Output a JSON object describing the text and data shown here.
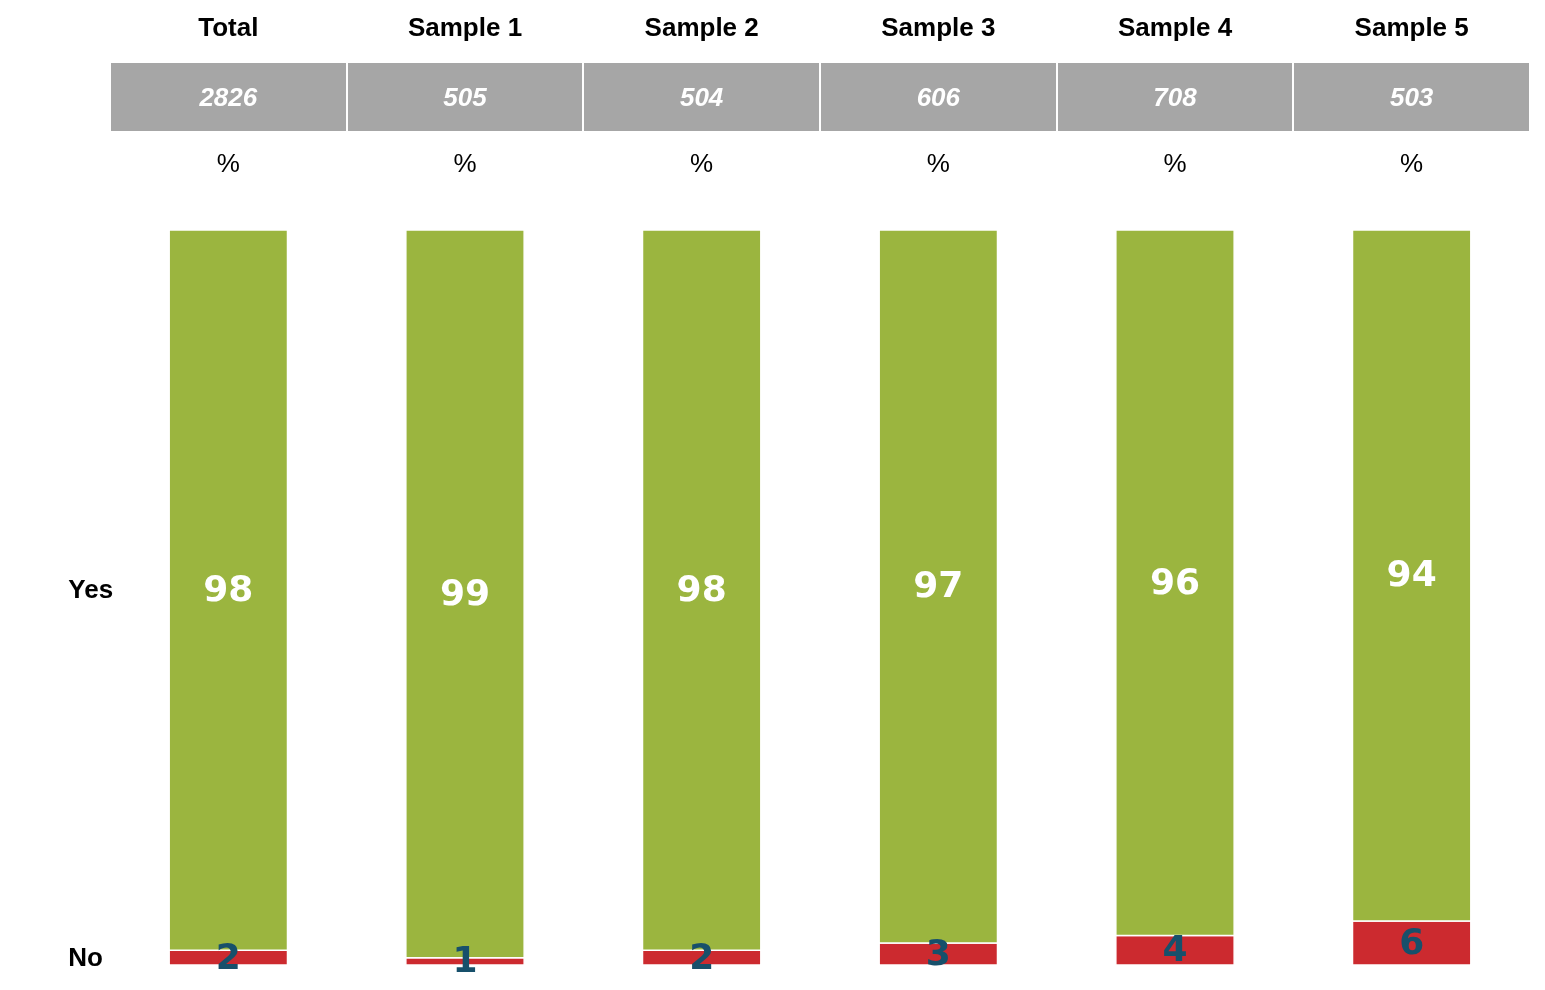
{
  "chart_data": {
    "type": "bar",
    "stacked": true,
    "data_labels": true,
    "categories": [
      "Total",
      "Sample 1",
      "Sample 2",
      "Sample 3",
      "Sample 4",
      "Sample 5"
    ],
    "series": [
      {
        "name": "No",
        "color": "#cc2a2f",
        "values": [
          2,
          1,
          2,
          3,
          4,
          6
        ]
      },
      {
        "name": "Yes",
        "color": "#9bb53f",
        "values": [
          98,
          99,
          98,
          97,
          96,
          94
        ]
      }
    ],
    "annotations": [
      "2826",
      "505",
      "504",
      "606",
      "708",
      "503",
      "%",
      "%",
      "%",
      "%",
      "%",
      "%"
    ]
  }
}
